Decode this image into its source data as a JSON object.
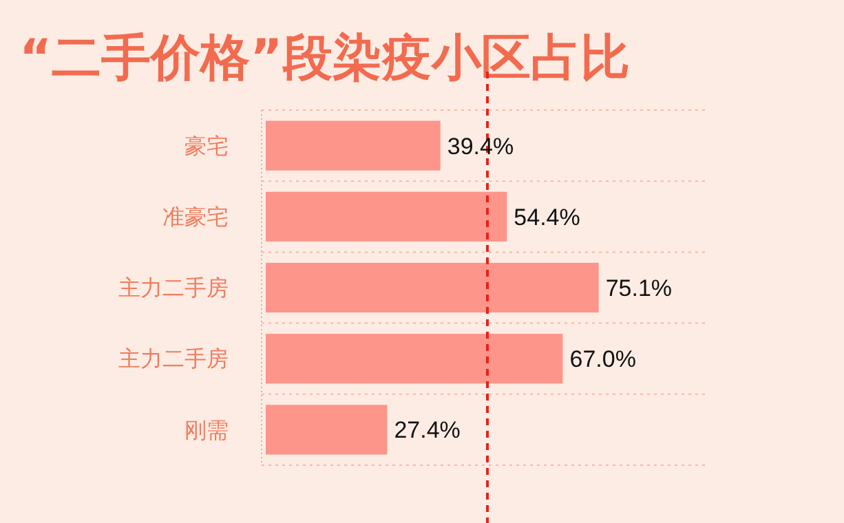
{
  "chart_data": {
    "type": "bar",
    "orientation": "horizontal",
    "title": "“二手价格”段染疫小区占比",
    "categories": [
      "豪宅",
      "准豪宅",
      "主力二手房",
      "主力二手房",
      "刚需"
    ],
    "values": [
      39.4,
      54.4,
      75.1,
      67.0,
      27.4
    ],
    "value_labels": [
      "39.4%",
      "54.4%",
      "75.1%",
      "67.0%",
      "27.4%"
    ],
    "color": "#fe958a",
    "xlim": [
      0,
      100
    ],
    "tick_labels": "y",
    "grid": "y",
    "ref_lines": [
      {
        "axis": "x",
        "value": 50,
        "color": "#e8231b",
        "line_style": "dashed"
      }
    ]
  }
}
